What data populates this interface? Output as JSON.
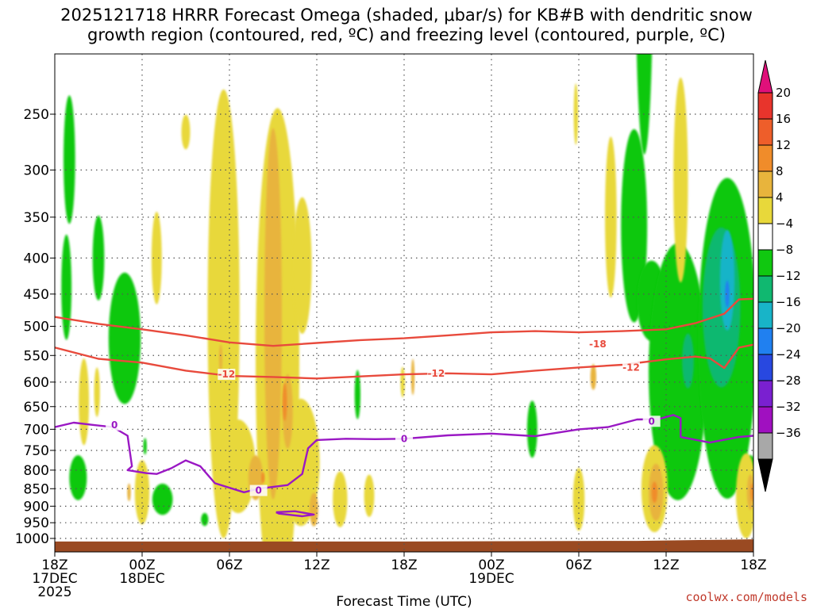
{
  "chart_data": {
    "type": "heatmap",
    "title_line1": "2025121718 HRRR Forecast Omega (shaded, μbar/s) for KB#B with dendritic snow",
    "title_line2": "growth region (contoured, red, ºC) and freezing level (contoured, purple, ºC)",
    "xlabel": "Forecast Time (UTC)",
    "ylabel": "",
    "credit": "coolwx.com/models",
    "x_range_hours": [
      0,
      48
    ],
    "y_range_hPa": [
      200,
      1030
    ],
    "y_scale": "log-pressure",
    "grid": true,
    "y_ticks": [
      250,
      300,
      350,
      400,
      450,
      500,
      550,
      600,
      650,
      700,
      750,
      800,
      850,
      900,
      950,
      1000
    ],
    "x_ticks": [
      {
        "h": 0,
        "l1": "18Z",
        "l2": "17DEC",
        "l3": "2025"
      },
      {
        "h": 6,
        "l1": "00Z",
        "l2": "18DEC",
        "l3": ""
      },
      {
        "h": 12,
        "l1": "06Z",
        "l2": "",
        "l3": ""
      },
      {
        "h": 18,
        "l1": "12Z",
        "l2": "",
        "l3": ""
      },
      {
        "h": 24,
        "l1": "18Z",
        "l2": "",
        "l3": ""
      },
      {
        "h": 30,
        "l1": "00Z",
        "l2": "19DEC",
        "l3": ""
      },
      {
        "h": 36,
        "l1": "06Z",
        "l2": "",
        "l3": ""
      },
      {
        "h": 42,
        "l1": "12Z",
        "l2": "",
        "l3": ""
      },
      {
        "h": 48,
        "l1": "18Z",
        "l2": "",
        "l3": ""
      }
    ],
    "colorbar": {
      "bins": [
        {
          "from": 20,
          "to": 24,
          "color": "#e0107a"
        },
        {
          "from": 16,
          "to": 20,
          "color": "#e8342c"
        },
        {
          "from": 12,
          "to": 16,
          "color": "#ee5e2a"
        },
        {
          "from": 8,
          "to": 12,
          "color": "#f08c2a"
        },
        {
          "from": 4,
          "to": 8,
          "color": "#e8b43c"
        },
        {
          "from": -4,
          "to": 4,
          "color": "#e8d83a"
        },
        {
          "from": -8,
          "to": -4,
          "color": "#ffffff"
        },
        {
          "from": -12,
          "to": -8,
          "color": "#10c810"
        },
        {
          "from": -16,
          "to": -12,
          "color": "#10b870"
        },
        {
          "from": -20,
          "to": -16,
          "color": "#18b4c8"
        },
        {
          "from": -24,
          "to": -20,
          "color": "#2080f0"
        },
        {
          "from": -28,
          "to": -24,
          "color": "#2848e0"
        },
        {
          "from": -32,
          "to": -28,
          "color": "#7a20d0"
        },
        {
          "from": -36,
          "to": -32,
          "color": "#a010c0"
        },
        {
          "from": -40,
          "to": -36,
          "color": "#a8a8a8"
        },
        {
          "from": -44,
          "to": -40,
          "color": "#000000"
        }
      ],
      "labels": [
        "20",
        "16",
        "12",
        "8",
        "4",
        "−4",
        "−8",
        "−12",
        "−16",
        "−20",
        "−24",
        "−28",
        "−32",
        "−36"
      ]
    },
    "omega_fields": [
      {
        "bin": 4,
        "center_h": 24.6,
        "center_hPa": 590,
        "radius_h": 0.12,
        "half_dp": 35
      },
      {
        "bin": 4,
        "center_h": 37.0,
        "center_hPa": 590,
        "radius_h": 0.2,
        "half_dp": 25
      },
      {
        "bin": 7,
        "center_h": 1.0,
        "center_hPa": 290,
        "radius_h": 0.4,
        "half_dp": 60
      },
      {
        "bin": 7,
        "center_h": 3.0,
        "center_hPa": 400,
        "radius_h": 0.4,
        "half_dp": 55
      },
      {
        "bin": 7,
        "center_h": 0.8,
        "center_hPa": 440,
        "radius_h": 0.35,
        "half_dp": 75
      },
      {
        "bin": 7,
        "center_h": 4.8,
        "center_hPa": 520,
        "radius_h": 1.1,
        "half_dp": 110
      },
      {
        "bin": 7,
        "center_h": 1.6,
        "center_hPa": 820,
        "radius_h": 0.6,
        "half_dp": 60
      },
      {
        "bin": 7,
        "center_h": 7.4,
        "center_hPa": 880,
        "radius_h": 0.7,
        "half_dp": 45
      },
      {
        "bin": 7,
        "center_h": 6.2,
        "center_hPa": 740,
        "radius_h": 0.12,
        "half_dp": 20
      },
      {
        "bin": 7,
        "center_h": 10.3,
        "center_hPa": 940,
        "radius_h": 0.25,
        "half_dp": 20
      },
      {
        "bin": 7,
        "center_h": 20.8,
        "center_hPa": 625,
        "radius_h": 0.2,
        "half_dp": 50
      },
      {
        "bin": 7,
        "center_h": 32.8,
        "center_hPa": 700,
        "radius_h": 0.35,
        "half_dp": 65
      },
      {
        "bin": 7,
        "center_h": 40.5,
        "center_hPa": 150,
        "radius_h": 0.6,
        "half_dp": 85
      },
      {
        "bin": 7,
        "center_h": 39.8,
        "center_hPa": 360,
        "radius_h": 0.9,
        "half_dp": 110
      },
      {
        "bin": 7,
        "center_h": 41.0,
        "center_hPa": 460,
        "radius_h": 1.0,
        "half_dp": 60
      },
      {
        "bin": 7,
        "center_h": 42.8,
        "center_hPa": 580,
        "radius_h": 2.0,
        "half_dp": 230
      },
      {
        "bin": 7,
        "center_h": 46.2,
        "center_hPa": 520,
        "radius_h": 2.0,
        "half_dp": 250
      },
      {
        "bin": 7,
        "center_h": 47.8,
        "center_hPa": 820,
        "radius_h": 0.5,
        "half_dp": 60
      },
      {
        "bin": 8,
        "center_h": 45.8,
        "center_hPa": 470,
        "radius_h": 1.3,
        "half_dp": 120
      },
      {
        "bin": 8,
        "center_h": 43.5,
        "center_hPa": 560,
        "radius_h": 0.4,
        "half_dp": 50
      },
      {
        "bin": 9,
        "center_h": 46.2,
        "center_hPa": 430,
        "radius_h": 0.5,
        "half_dp": 70
      },
      {
        "bin": 10,
        "center_h": 46.2,
        "center_hPa": 450,
        "radius_h": 0.15,
        "half_dp": 20
      },
      {
        "bin": 5,
        "center_h": 9.0,
        "center_hPa": 265,
        "radius_h": 0.3,
        "half_dp": 15
      },
      {
        "bin": 5,
        "center_h": 2.0,
        "center_hPa": 640,
        "radius_h": 0.35,
        "half_dp": 90
      },
      {
        "bin": 5,
        "center_h": 7.0,
        "center_hPa": 400,
        "radius_h": 0.35,
        "half_dp": 60
      },
      {
        "bin": 5,
        "center_h": 11.6,
        "center_hPa": 480,
        "radius_h": 1.1,
        "half_dp": 300
      },
      {
        "bin": 5,
        "center_h": 15.3,
        "center_hPa": 560,
        "radius_h": 1.5,
        "half_dp": 380
      },
      {
        "bin": 5,
        "center_h": 17.0,
        "center_hPa": 410,
        "radius_h": 0.65,
        "half_dp": 90
      },
      {
        "bin": 5,
        "center_h": 12.6,
        "center_hPa": 790,
        "radius_h": 1.2,
        "half_dp": 120
      },
      {
        "bin": 5,
        "center_h": 16.9,
        "center_hPa": 780,
        "radius_h": 1.3,
        "half_dp": 160
      },
      {
        "bin": 5,
        "center_h": 19.6,
        "center_hPa": 880,
        "radius_h": 0.5,
        "half_dp": 80
      },
      {
        "bin": 5,
        "center_h": 21.6,
        "center_hPa": 870,
        "radius_h": 0.35,
        "half_dp": 60
      },
      {
        "bin": 5,
        "center_h": 23.9,
        "center_hPa": 600,
        "radius_h": 0.15,
        "half_dp": 30
      },
      {
        "bin": 5,
        "center_h": 6.0,
        "center_hPa": 860,
        "radius_h": 0.5,
        "half_dp": 90
      },
      {
        "bin": 5,
        "center_h": 2.9,
        "center_hPa": 620,
        "radius_h": 0.2,
        "half_dp": 50
      },
      {
        "bin": 5,
        "center_h": 35.8,
        "center_hPa": 250,
        "radius_h": 0.15,
        "half_dp": 25
      },
      {
        "bin": 5,
        "center_h": 38.2,
        "center_hPa": 350,
        "radius_h": 0.4,
        "half_dp": 90
      },
      {
        "bin": 5,
        "center_h": 36.0,
        "center_hPa": 880,
        "radius_h": 0.4,
        "half_dp": 90
      },
      {
        "bin": 5,
        "center_h": 41.2,
        "center_hPa": 850,
        "radius_h": 0.9,
        "half_dp": 120
      },
      {
        "bin": 5,
        "center_h": 43.0,
        "center_hPa": 310,
        "radius_h": 0.5,
        "half_dp": 100
      },
      {
        "bin": 5,
        "center_h": 47.5,
        "center_hPa": 870,
        "radius_h": 0.7,
        "half_dp": 120
      },
      {
        "bin": 4,
        "center_h": 15.0,
        "center_hPa": 480,
        "radius_h": 0.6,
        "half_dp": 260
      },
      {
        "bin": 4,
        "center_h": 16.0,
        "center_hPa": 660,
        "radius_h": 0.35,
        "half_dp": 80
      },
      {
        "bin": 4,
        "center_h": 11.4,
        "center_hPa": 555,
        "radius_h": 0.12,
        "half_dp": 25
      },
      {
        "bin": 4,
        "center_h": 13.8,
        "center_hPa": 820,
        "radius_h": 0.5,
        "half_dp": 60
      },
      {
        "bin": 4,
        "center_h": 17.8,
        "center_hPa": 910,
        "radius_h": 0.3,
        "half_dp": 50
      },
      {
        "bin": 4,
        "center_h": 41.3,
        "center_hPa": 860,
        "radius_h": 0.5,
        "half_dp": 80
      },
      {
        "bin": 4,
        "center_h": 47.8,
        "center_hPa": 860,
        "radius_h": 0.25,
        "half_dp": 50
      },
      {
        "bin": 4,
        "center_h": 5.1,
        "center_hPa": 860,
        "radius_h": 0.12,
        "half_dp": 25
      },
      {
        "bin": 3,
        "center_h": 15.8,
        "center_hPa": 640,
        "radius_h": 0.15,
        "half_dp": 40
      },
      {
        "bin": 3,
        "center_h": 41.2,
        "center_hPa": 860,
        "radius_h": 0.2,
        "half_dp": 30
      },
      {
        "bin": 3,
        "center_h": 47.9,
        "center_hPa": 860,
        "radius_h": 0.1,
        "half_dp": 25
      },
      {
        "bin": 3,
        "center_h": 14.3,
        "center_hPa": 820,
        "radius_h": 0.12,
        "half_dp": 15
      }
    ],
    "contours": [
      {
        "name": "dgz",
        "color": "#e84a3c",
        "label": "-18",
        "label_at": [
          37.3,
          530
        ],
        "points": [
          [
            0,
            485
          ],
          [
            3,
            496
          ],
          [
            6,
            505
          ],
          [
            9,
            515
          ],
          [
            12,
            527
          ],
          [
            15,
            533
          ],
          [
            18,
            528
          ],
          [
            21,
            523
          ],
          [
            24,
            520
          ],
          [
            27,
            515
          ],
          [
            30,
            510
          ],
          [
            33,
            508
          ],
          [
            36,
            510
          ],
          [
            39,
            508
          ],
          [
            42,
            505
          ],
          [
            44,
            495
          ],
          [
            46,
            480
          ],
          [
            47,
            458
          ],
          [
            48,
            457
          ]
        ]
      },
      {
        "name": "dgz",
        "color": "#e84a3c",
        "label": "-12",
        "label_at": [
          11.8,
          585
        ],
        "points": [
          [
            0,
            536
          ],
          [
            3,
            556
          ],
          [
            6,
            563
          ],
          [
            9,
            578
          ],
          [
            12,
            588
          ],
          [
            15,
            590
          ],
          [
            18,
            593
          ],
          [
            21,
            589
          ],
          [
            24,
            585
          ],
          [
            27,
            583
          ],
          [
            30,
            585
          ],
          [
            33,
            578
          ],
          [
            36,
            572
          ],
          [
            39,
            567
          ],
          [
            42,
            557
          ],
          [
            44,
            552
          ],
          [
            45,
            555
          ],
          [
            46,
            573
          ],
          [
            47,
            536
          ],
          [
            48,
            531
          ]
        ]
      },
      {
        "name": "dgz",
        "color": "#e84a3c",
        "label": "-12",
        "label_at": [
          26.2,
          583
        ],
        "points": []
      },
      {
        "name": "dgz",
        "color": "#e84a3c",
        "label": "-12",
        "label_at": [
          39.6,
          572
        ],
        "points": []
      },
      {
        "name": "freezing",
        "color": "#9a18c4",
        "label": "0",
        "label_at": [
          4.1,
          690
        ],
        "points": [
          [
            0,
            695
          ],
          [
            1.3,
            685
          ],
          [
            2.6,
            690
          ],
          [
            4,
            695
          ],
          [
            5,
            715
          ],
          [
            5.3,
            790
          ],
          [
            5.0,
            800
          ],
          [
            6.3,
            808
          ],
          [
            7,
            810
          ],
          [
            8,
            795
          ],
          [
            9,
            775
          ],
          [
            10,
            790
          ],
          [
            11,
            835
          ],
          [
            13,
            860
          ],
          [
            14,
            850
          ],
          [
            16,
            840
          ],
          [
            17,
            810
          ],
          [
            17.4,
            745
          ],
          [
            18,
            725
          ],
          [
            20,
            722
          ],
          [
            22,
            723
          ],
          [
            24,
            722
          ],
          [
            27,
            714
          ],
          [
            30,
            710
          ],
          [
            33,
            716
          ],
          [
            36,
            700
          ],
          [
            38,
            695
          ],
          [
            40,
            678
          ],
          [
            41.5,
            677
          ],
          [
            42.5,
            668
          ],
          [
            43,
            675
          ],
          [
            43,
            718
          ],
          [
            45,
            731
          ],
          [
            47,
            718
          ],
          [
            48,
            715
          ]
        ]
      },
      {
        "name": "freezing",
        "color": "#9a18c4",
        "label": "0",
        "label_at": [
          14.0,
          855
        ],
        "points": []
      },
      {
        "name": "freezing",
        "color": "#9a18c4",
        "label": "0",
        "label_at": [
          24.0,
          722
        ],
        "points": []
      },
      {
        "name": "freezing",
        "color": "#9a18c4",
        "label": "0",
        "label_at": [
          41.0,
          682
        ],
        "points": []
      },
      {
        "name": "freezing",
        "color": "#9a18c4",
        "label": "",
        "label_at": null,
        "points": [
          [
            15.2,
            918
          ],
          [
            16.5,
            915
          ],
          [
            17.8,
            925
          ],
          [
            17.0,
            930
          ],
          [
            15.4,
            922
          ],
          [
            15.2,
            918
          ]
        ]
      }
    ]
  }
}
